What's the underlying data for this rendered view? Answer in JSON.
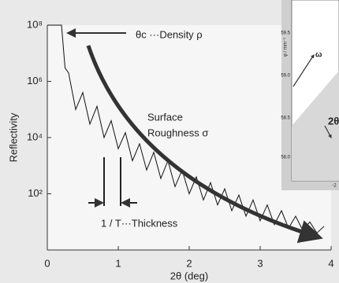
{
  "chart_data": {
    "type": "line",
    "y_label": "Reflectivity",
    "x_label": "2θ (deg)",
    "x": [
      0,
      0.2,
      0.25,
      0.3,
      0.4,
      0.5,
      0.6,
      0.7,
      0.8,
      0.9,
      1.0,
      1.1,
      1.2,
      1.3,
      1.4,
      1.5,
      1.6,
      1.7,
      1.8,
      1.9,
      2.0,
      2.1,
      2.2,
      2.3,
      2.4,
      2.5,
      2.6,
      2.7,
      2.8,
      2.9,
      3.0,
      3.1,
      3.2,
      3.3,
      3.4,
      3.5,
      3.6,
      3.7,
      3.8,
      3.9
    ],
    "values": [
      100000000,
      100000000,
      3000000,
      2000000,
      100000,
      400000,
      30000,
      130000,
      10000,
      40000,
      4000,
      15000,
      1500,
      6000,
      700,
      3000,
      350,
      1500,
      180,
      700,
      100,
      400,
      60,
      250,
      40,
      150,
      25,
      90,
      16,
      60,
      11,
      40,
      8,
      25,
      6,
      16,
      5,
      10,
      4,
      7
    ],
    "color": "#111111",
    "log_y": true,
    "xlim": [
      0,
      4
    ],
    "xticks": [
      0,
      1,
      2,
      3,
      4
    ],
    "ylim": [
      1,
      100000000
    ],
    "yticks": [
      {
        "value": 100,
        "label": "10²"
      },
      {
        "value": 10000,
        "label": "10⁴"
      },
      {
        "value": 1000000,
        "label": "10⁶"
      },
      {
        "value": 100000000,
        "label": "10⁸"
      }
    ],
    "annotations": {
      "critical": "θc ···Density ρ",
      "roughness_1": "Surface",
      "roughness_2": "Roughness σ",
      "thickness": "1 / T···Thickness"
    }
  },
  "inset": {
    "axis_label": "φ / mm⁻¹",
    "ticks": [
      "59.5",
      "59.0",
      "58.5",
      "58.0"
    ],
    "omega": "ω",
    "two_theta": "2θ",
    "x_tick": "-2"
  }
}
